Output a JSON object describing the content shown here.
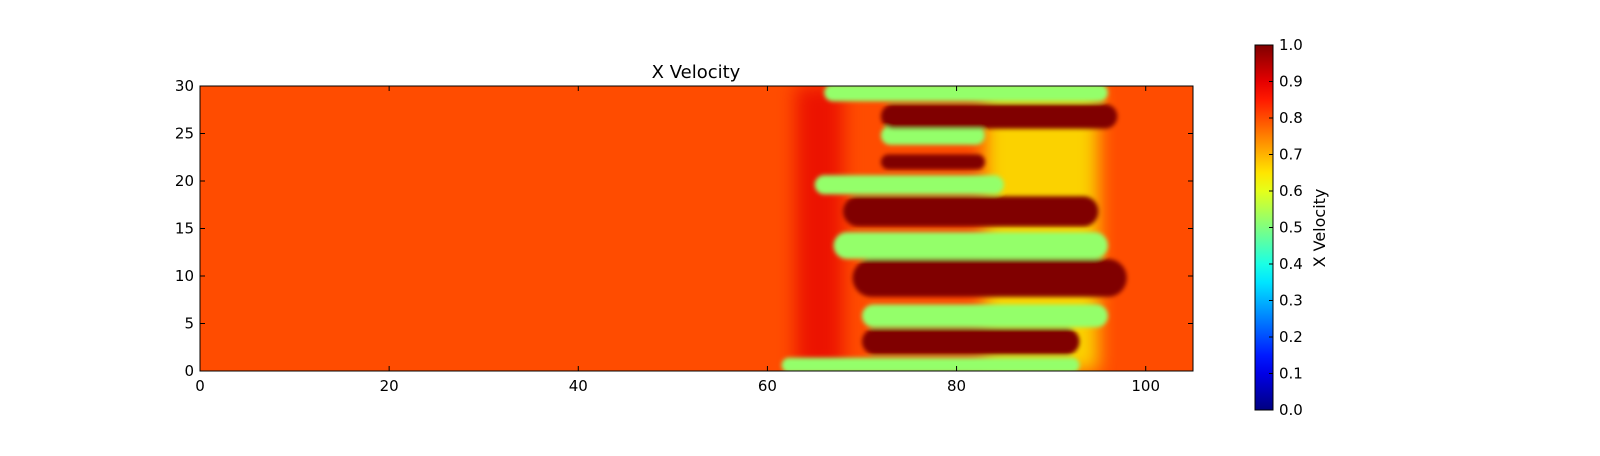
{
  "chart_data": {
    "type": "heatmap",
    "title": "X Velocity",
    "xlabel": "",
    "ylabel": "",
    "xlim": [
      0,
      105
    ],
    "ylim": [
      0,
      30
    ],
    "x_ticks": [
      0,
      20,
      40,
      60,
      80,
      100
    ],
    "y_ticks": [
      0,
      5,
      10,
      15,
      20,
      25,
      30
    ],
    "background_value": 0.8,
    "colormap": "jet",
    "colorbar": {
      "label": "X Velocity",
      "range": [
        0.0,
        1.0
      ],
      "ticks": [
        "0.0",
        "0.1",
        "0.2",
        "0.3",
        "0.4",
        "0.5",
        "0.6",
        "0.7",
        "0.8",
        "0.9",
        "1.0"
      ]
    },
    "streaks": [
      {
        "value": 0.52,
        "x_start": 61.5,
        "x_end": 93,
        "y": 0.6,
        "half_width": 0.8
      },
      {
        "value": 1.0,
        "x_start": 70,
        "x_end": 93,
        "y": 3.1,
        "half_width": 1.4
      },
      {
        "value": 0.52,
        "x_start": 70,
        "x_end": 96,
        "y": 5.8,
        "half_width": 1.2
      },
      {
        "value": 1.0,
        "x_start": 69,
        "x_end": 98,
        "y": 9.8,
        "half_width": 2.0
      },
      {
        "value": 0.52,
        "x_start": 67,
        "x_end": 96,
        "y": 13.2,
        "half_width": 1.4
      },
      {
        "value": 1.0,
        "x_start": 68,
        "x_end": 95,
        "y": 16.8,
        "half_width": 1.6
      },
      {
        "value": 0.52,
        "x_start": 65,
        "x_end": 85,
        "y": 19.6,
        "half_width": 1.0
      },
      {
        "value": 1.0,
        "x_start": 72,
        "x_end": 83,
        "y": 22.0,
        "half_width": 0.8
      },
      {
        "value": 0.52,
        "x_start": 72,
        "x_end": 83,
        "y": 24.8,
        "half_width": 1.0
      },
      {
        "value": 1.0,
        "x_start": 72,
        "x_end": 97,
        "y": 26.8,
        "half_width": 1.3
      },
      {
        "value": 0.52,
        "x_start": 66,
        "x_end": 96,
        "y": 29.3,
        "half_width": 0.9
      }
    ],
    "regions": [
      {
        "value": 0.62,
        "x_start": 83,
        "x_end": 95,
        "y_start": 0,
        "y_end": 30
      },
      {
        "value": 0.9,
        "x_start": 63,
        "x_end": 68,
        "y_start": 0,
        "y_end": 30
      }
    ]
  }
}
